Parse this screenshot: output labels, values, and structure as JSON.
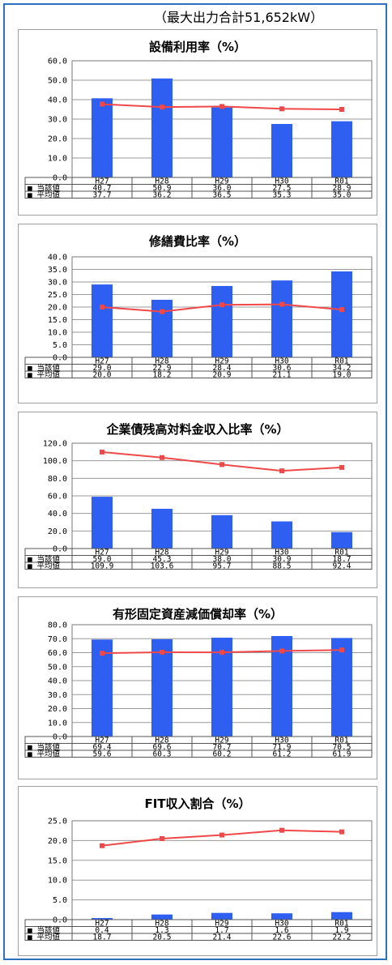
{
  "header": {
    "note": "（最大出力合計51,652kW）"
  },
  "colors": {
    "actual": "#2f5ff0",
    "average": "#f04848",
    "frame": "#2f6fc0"
  },
  "table_rows": [
    "■ 当該値",
    "■ 平均値"
  ],
  "chart_data": [
    {
      "type": "bar",
      "title": "設備利用率（%）",
      "categories": [
        "H27",
        "H28",
        "H29",
        "H30",
        "R01"
      ],
      "ylim": [
        0,
        60
      ],
      "yticks": [
        "0.0",
        "10.0",
        "20.0",
        "30.0",
        "40.0",
        "50.0",
        "60.0"
      ],
      "series": [
        {
          "name": "当該値",
          "kind": "bar",
          "values": [
            40.7,
            50.9,
            36.0,
            27.5,
            28.9
          ],
          "labels": [
            "40.7",
            "50.9",
            "36.0",
            "27.5",
            "28.9"
          ]
        },
        {
          "name": "平均値",
          "kind": "line",
          "values": [
            37.7,
            36.2,
            36.5,
            35.3,
            35.0
          ],
          "labels": [
            "37.7",
            "36.2",
            "36.5",
            "35.3",
            "35.0"
          ]
        }
      ]
    },
    {
      "type": "bar",
      "title": "修繕費比率（%）",
      "categories": [
        "H27",
        "H28",
        "H29",
        "H30",
        "R01"
      ],
      "ylim": [
        0,
        40
      ],
      "yticks": [
        "0.0",
        "5.0",
        "10.0",
        "15.0",
        "20.0",
        "25.0",
        "30.0",
        "35.0",
        "40.0"
      ],
      "series": [
        {
          "name": "当該値",
          "kind": "bar",
          "values": [
            29.0,
            22.9,
            28.4,
            30.6,
            34.2
          ],
          "labels": [
            "29.0",
            "22.9",
            "28.4",
            "30.6",
            "34.2"
          ]
        },
        {
          "name": "平均値",
          "kind": "line",
          "values": [
            20.0,
            18.2,
            20.9,
            21.1,
            19.0
          ],
          "labels": [
            "20.0",
            "18.2",
            "20.9",
            "21.1",
            "19.0"
          ]
        }
      ]
    },
    {
      "type": "bar",
      "title": "企業債残高対料金収入比率（%）",
      "categories": [
        "H27",
        "H28",
        "H29",
        "H30",
        "R01"
      ],
      "ylim": [
        0,
        120
      ],
      "yticks": [
        "0.0",
        "20.0",
        "40.0",
        "60.0",
        "80.0",
        "100.0",
        "120.0"
      ],
      "series": [
        {
          "name": "当該値",
          "kind": "bar",
          "values": [
            59.0,
            45.3,
            38.0,
            30.9,
            18.7
          ],
          "labels": [
            "59.0",
            "45.3",
            "38.0",
            "30.9",
            "18.7"
          ]
        },
        {
          "name": "平均値",
          "kind": "line",
          "values": [
            109.9,
            103.6,
            95.7,
            88.5,
            92.4
          ],
          "labels": [
            "109.9",
            "103.6",
            "95.7",
            "88.5",
            "92.4"
          ]
        }
      ]
    },
    {
      "type": "bar",
      "title": "有形固定資産減価償却率（%）",
      "categories": [
        "H27",
        "H28",
        "H29",
        "H30",
        "R01"
      ],
      "ylim": [
        0,
        80
      ],
      "yticks": [
        "0.0",
        "10.0",
        "20.0",
        "30.0",
        "40.0",
        "50.0",
        "60.0",
        "70.0",
        "80.0"
      ],
      "series": [
        {
          "name": "当該値",
          "kind": "bar",
          "values": [
            69.4,
            69.6,
            70.7,
            71.9,
            70.5
          ],
          "labels": [
            "69.4",
            "69.6",
            "70.7",
            "71.9",
            "70.5"
          ]
        },
        {
          "name": "平均値",
          "kind": "line",
          "values": [
            59.6,
            60.3,
            60.2,
            61.2,
            61.9
          ],
          "labels": [
            "59.6",
            "60.3",
            "60.2",
            "61.2",
            "61.9"
          ]
        }
      ]
    },
    {
      "type": "bar",
      "title": "FIT収入割合（%）",
      "categories": [
        "H27",
        "H28",
        "H29",
        "H30",
        "R01"
      ],
      "ylim": [
        0,
        25
      ],
      "yticks": [
        "0.0",
        "5.0",
        "10.0",
        "15.0",
        "20.0",
        "25.0"
      ],
      "series": [
        {
          "name": "当該値",
          "kind": "bar",
          "values": [
            0.4,
            1.3,
            1.7,
            1.6,
            1.9
          ],
          "labels": [
            "0.4",
            "1.3",
            "1.7",
            "1.6",
            "1.9"
          ]
        },
        {
          "name": "平均値",
          "kind": "line",
          "values": [
            18.7,
            20.5,
            21.4,
            22.6,
            22.2
          ],
          "labels": [
            "18.7",
            "20.5",
            "21.4",
            "22.6",
            "22.2"
          ]
        }
      ]
    }
  ]
}
